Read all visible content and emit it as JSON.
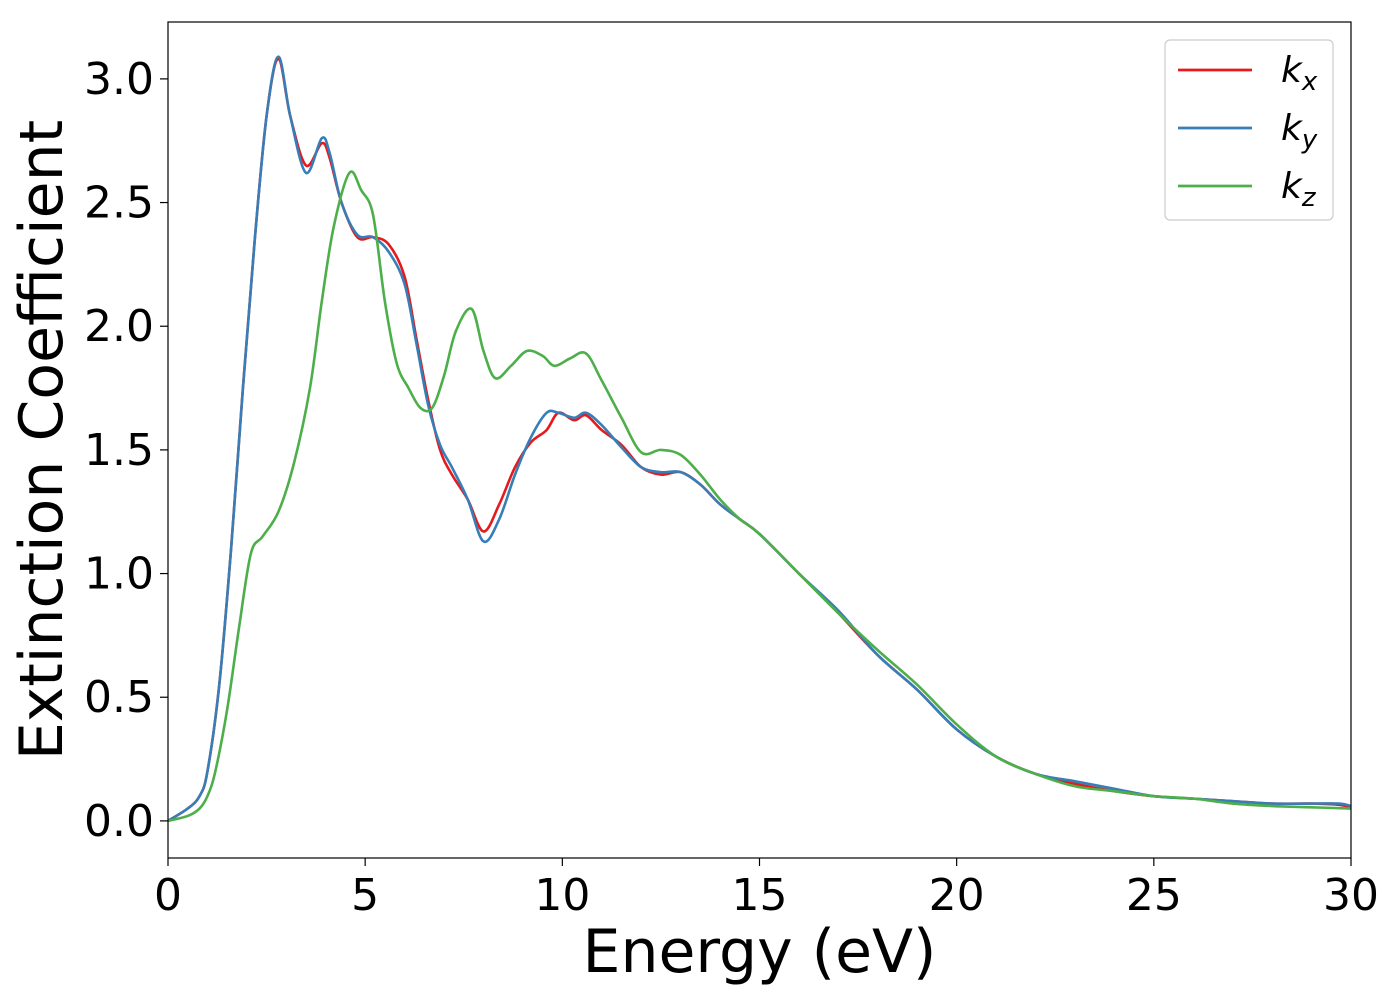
{
  "chart_data": {
    "type": "line",
    "xlabel": "Energy (eV)",
    "ylabel": "Extinction Coefficient",
    "xlim": [
      0,
      30
    ],
    "ylim": [
      -0.15,
      3.23
    ],
    "x_ticks": [
      0,
      5,
      10,
      15,
      20,
      25,
      30
    ],
    "x_tick_labels": [
      "0",
      "5",
      "10",
      "15",
      "20",
      "25",
      "30"
    ],
    "y_ticks": [
      0.0,
      0.5,
      1.0,
      1.5,
      2.0,
      2.5,
      3.0
    ],
    "y_tick_labels": [
      "0.0",
      "0.5",
      "1.0",
      "1.5",
      "2.0",
      "2.5",
      "3.0"
    ],
    "grid": false,
    "legend_position": "top-right",
    "series": [
      {
        "name": "k_x",
        "legend_base": "k",
        "legend_sub": "x",
        "color": "#e41a1c",
        "x": [
          0,
          0.5,
          0.8,
          1.0,
          1.3,
          1.6,
          1.9,
          2.2,
          2.5,
          2.8,
          3.1,
          3.5,
          3.9,
          4.1,
          4.4,
          4.8,
          5.2,
          5.6,
          6.0,
          6.3,
          6.6,
          6.9,
          7.2,
          7.6,
          8.0,
          8.4,
          8.8,
          9.2,
          9.6,
          9.9,
          10.3,
          10.6,
          11.0,
          11.5,
          12.0,
          12.5,
          13.0,
          13.5,
          14.0,
          14.5,
          15.0,
          16.0,
          17.0,
          18.0,
          19.0,
          20.0,
          21.0,
          22.0,
          23.0,
          24.0,
          25.0,
          26.0,
          27.0,
          28.0,
          29.0,
          29.7,
          30.0
        ],
        "y": [
          0.0,
          0.05,
          0.1,
          0.2,
          0.55,
          1.1,
          1.75,
          2.35,
          2.85,
          3.08,
          2.85,
          2.65,
          2.74,
          2.68,
          2.5,
          2.36,
          2.36,
          2.33,
          2.2,
          1.95,
          1.7,
          1.5,
          1.4,
          1.3,
          1.17,
          1.28,
          1.43,
          1.53,
          1.58,
          1.65,
          1.62,
          1.64,
          1.58,
          1.52,
          1.43,
          1.4,
          1.41,
          1.36,
          1.28,
          1.22,
          1.16,
          1.0,
          0.84,
          0.67,
          0.53,
          0.37,
          0.26,
          0.19,
          0.15,
          0.12,
          0.1,
          0.09,
          0.08,
          0.07,
          0.07,
          0.065,
          0.055
        ]
      },
      {
        "name": "k_y",
        "legend_base": "k",
        "legend_sub": "y",
        "color": "#377eb8",
        "x": [
          0,
          0.5,
          0.8,
          1.0,
          1.3,
          1.6,
          1.9,
          2.2,
          2.5,
          2.8,
          3.1,
          3.5,
          3.9,
          4.1,
          4.4,
          4.8,
          5.2,
          5.6,
          6.0,
          6.3,
          6.6,
          6.9,
          7.2,
          7.6,
          8.0,
          8.4,
          8.8,
          9.2,
          9.6,
          9.9,
          10.3,
          10.6,
          11.0,
          11.5,
          12.0,
          12.5,
          13.0,
          13.5,
          14.0,
          14.5,
          15.0,
          16.0,
          17.0,
          18.0,
          19.0,
          20.0,
          21.0,
          22.0,
          23.0,
          24.0,
          25.0,
          26.0,
          27.0,
          28.0,
          29.0,
          29.7,
          30.0
        ],
        "y": [
          0.0,
          0.05,
          0.1,
          0.2,
          0.55,
          1.1,
          1.75,
          2.35,
          2.85,
          3.09,
          2.85,
          2.62,
          2.76,
          2.7,
          2.5,
          2.37,
          2.36,
          2.3,
          2.17,
          1.93,
          1.68,
          1.52,
          1.43,
          1.3,
          1.13,
          1.22,
          1.4,
          1.55,
          1.65,
          1.65,
          1.63,
          1.65,
          1.6,
          1.51,
          1.43,
          1.41,
          1.41,
          1.36,
          1.28,
          1.22,
          1.16,
          1.0,
          0.85,
          0.67,
          0.53,
          0.37,
          0.26,
          0.19,
          0.16,
          0.13,
          0.1,
          0.09,
          0.08,
          0.07,
          0.07,
          0.07,
          0.06
        ]
      },
      {
        "name": "k_z",
        "legend_base": "k",
        "legend_sub": "z",
        "color": "#4daf4a",
        "x": [
          0,
          0.5,
          0.8,
          1.0,
          1.2,
          1.5,
          1.8,
          2.1,
          2.4,
          2.8,
          3.2,
          3.6,
          3.9,
          4.2,
          4.6,
          4.9,
          5.2,
          5.5,
          5.8,
          6.1,
          6.4,
          6.7,
          7.0,
          7.3,
          7.7,
          8.0,
          8.3,
          8.7,
          9.1,
          9.5,
          9.8,
          10.2,
          10.6,
          11.0,
          11.5,
          12.0,
          12.5,
          13.0,
          13.5,
          14.0,
          14.5,
          15.0,
          16.0,
          17.0,
          18.0,
          19.0,
          20.0,
          21.0,
          22.0,
          23.0,
          24.0,
          25.0,
          26.0,
          27.0,
          28.0,
          29.0,
          30.0
        ],
        "y": [
          0.0,
          0.02,
          0.05,
          0.1,
          0.2,
          0.45,
          0.78,
          1.08,
          1.15,
          1.25,
          1.45,
          1.75,
          2.1,
          2.4,
          2.62,
          2.55,
          2.45,
          2.1,
          1.85,
          1.75,
          1.67,
          1.67,
          1.8,
          1.98,
          2.07,
          1.9,
          1.79,
          1.84,
          1.9,
          1.88,
          1.84,
          1.87,
          1.89,
          1.78,
          1.63,
          1.49,
          1.5,
          1.48,
          1.4,
          1.3,
          1.22,
          1.16,
          1.0,
          0.84,
          0.69,
          0.55,
          0.39,
          0.26,
          0.19,
          0.14,
          0.12,
          0.1,
          0.09,
          0.07,
          0.06,
          0.055,
          0.05
        ]
      }
    ]
  }
}
